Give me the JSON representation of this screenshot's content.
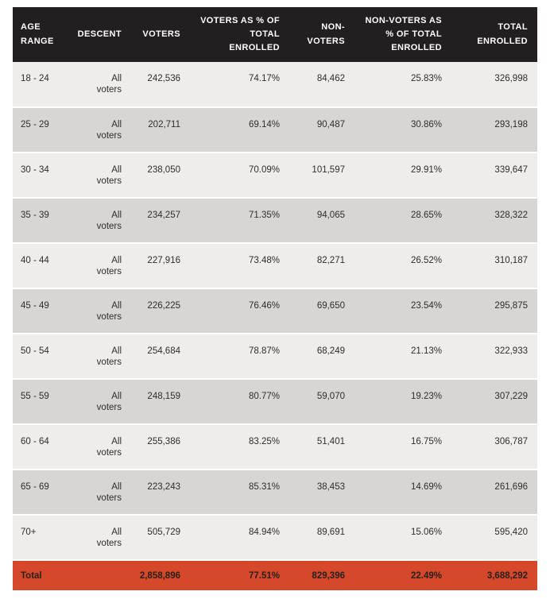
{
  "colors": {
    "header_background": "#231f20",
    "header_text": "#ffffff",
    "row_light_background": "#eeedec",
    "row_dark_background": "#d8d6d4",
    "total_row_background": "#d5492a",
    "total_row_text": "#29201b",
    "body_text": "#2f2d2c"
  },
  "chart_data": {
    "type": "table",
    "columns": [
      "AGE RANGE",
      "DESCENT",
      "VOTERS",
      "VOTERS AS % OF TOTAL ENROLLED",
      "NON-VOTERS",
      "NON-VOTERS AS % OF TOTAL ENROLLED",
      "TOTAL ENROLLED"
    ],
    "rows": [
      [
        "18 - 24",
        "All voters",
        "242,536",
        "74.17%",
        "84,462",
        "25.83%",
        "326,998"
      ],
      [
        "25 - 29",
        "All voters",
        "202,711",
        "69.14%",
        "90,487",
        "30.86%",
        "293,198"
      ],
      [
        "30 - 34",
        "All voters",
        "238,050",
        "70.09%",
        "101,597",
        "29.91%",
        "339,647"
      ],
      [
        "35 - 39",
        "All voters",
        "234,257",
        "71.35%",
        "94,065",
        "28.65%",
        "328,322"
      ],
      [
        "40 - 44",
        "All voters",
        "227,916",
        "73.48%",
        "82,271",
        "26.52%",
        "310,187"
      ],
      [
        "45 - 49",
        "All voters",
        "226,225",
        "76.46%",
        "69,650",
        "23.54%",
        "295,875"
      ],
      [
        "50 - 54",
        "All voters",
        "254,684",
        "78.87%",
        "68,249",
        "21.13%",
        "322,933"
      ],
      [
        "55 - 59",
        "All voters",
        "248,159",
        "80.77%",
        "59,070",
        "19.23%",
        "307,229"
      ],
      [
        "60 - 64",
        "All voters",
        "255,386",
        "83.25%",
        "51,401",
        "16.75%",
        "306,787"
      ],
      [
        "65 - 69",
        "All voters",
        "223,243",
        "85.31%",
        "38,453",
        "14.69%",
        "261,696"
      ],
      [
        "70+",
        "All voters",
        "505,729",
        "84.94%",
        "89,691",
        "15.06%",
        "595,420"
      ]
    ],
    "total_row": [
      "Total",
      "",
      "2,858,896",
      "77.51%",
      "829,396",
      "22.49%",
      "3,688,292"
    ]
  }
}
